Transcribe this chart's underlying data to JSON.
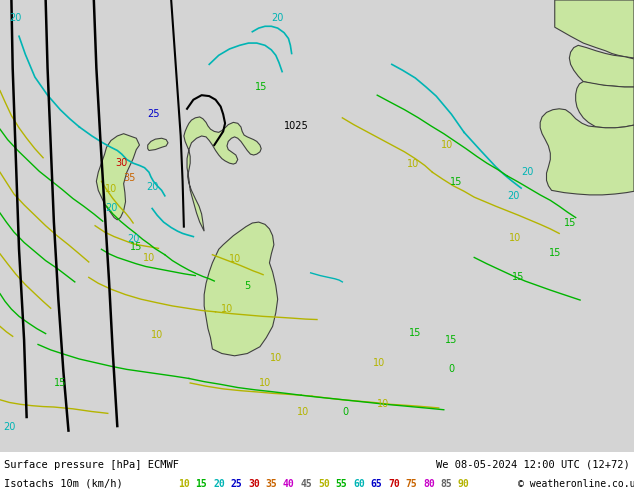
{
  "title_line1": "Surface pressure [hPa] ECMWF",
  "title_line2": "Isotachs 10m (km/h)",
  "date_str": "We 08-05-2024 12:00 UTC (12+72)",
  "watermark": "© weatheronline.co.uk",
  "bg_color": "#d4d4d4",
  "map_bg_color": "#d4d4d4",
  "land_color": "#c8e6a0",
  "land_edge_color": "#404040",
  "figsize": [
    6.34,
    4.9
  ],
  "dpi": 100,
  "legend_values": [
    10,
    15,
    20,
    25,
    30,
    35,
    40,
    45,
    50,
    55,
    60,
    65,
    70,
    75,
    80,
    85,
    90
  ],
  "legend_colors": [
    "#b4b400",
    "#00b400",
    "#00b4b4",
    "#0000c8",
    "#c80000",
    "#c86400",
    "#c800c8",
    "#646464",
    "#b4b400",
    "#00b400",
    "#00b4b4",
    "#0000c8",
    "#c80000",
    "#c86400",
    "#c800c8",
    "#646464",
    "#b4b400"
  ],
  "isotach_colors": {
    "10": "#b4b400",
    "15": "#00b400",
    "20": "#00b4b4",
    "25": "#0000c8",
    "30": "#c80000",
    "35": "#c86400",
    "40": "#c800c8"
  }
}
